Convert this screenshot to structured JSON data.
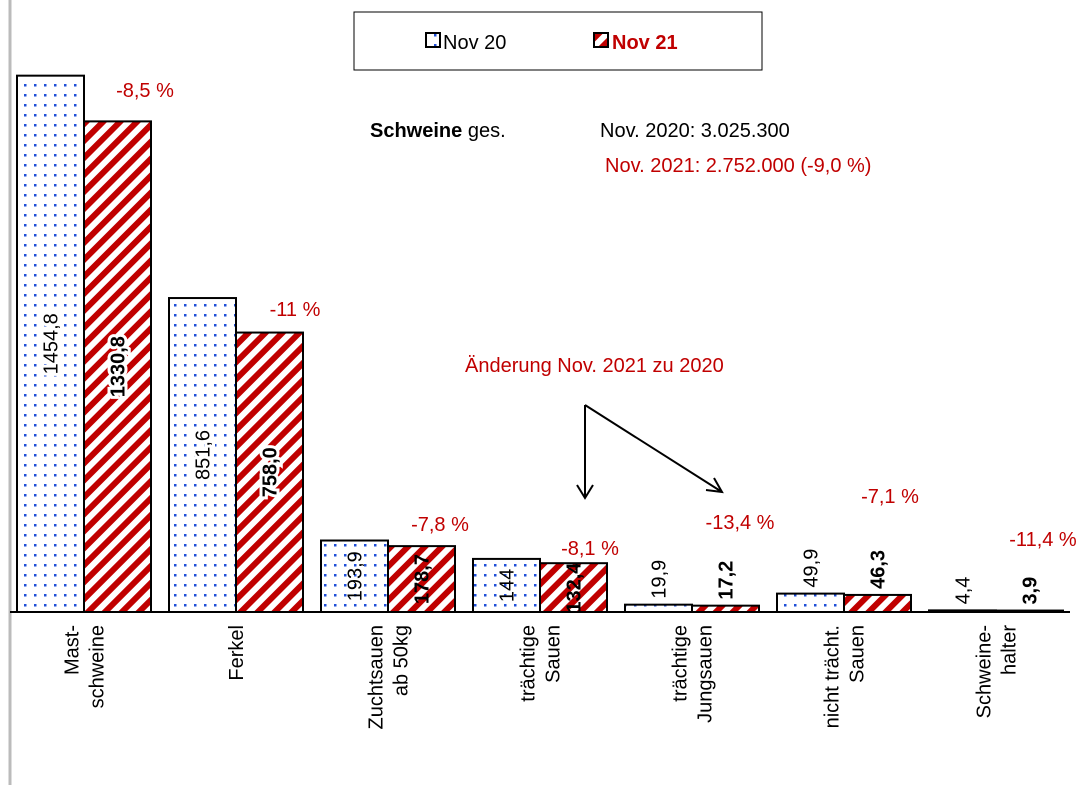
{
  "chart_data": {
    "type": "bar",
    "categories": [
      [
        "Mast-",
        "schweine"
      ],
      [
        "Ferkel"
      ],
      [
        "Zuchtsauen",
        "ab 50kg"
      ],
      [
        "trächtige",
        "Sauen"
      ],
      [
        "trächtige",
        "Jungsauen"
      ],
      [
        "nicht trächt.",
        "Sauen"
      ],
      [
        "Schweine-",
        "halter"
      ]
    ],
    "series": [
      {
        "name": "Nov 20",
        "color": "#1f4fd8",
        "values": [
          1454.8,
          851.6,
          193.9,
          144,
          19.9,
          49.9,
          4.4
        ],
        "value_labels": [
          "1454,8",
          "851,6",
          "193,9",
          "144",
          "19,9",
          "49,9",
          "4,4"
        ]
      },
      {
        "name": "Nov 21",
        "color": "#c00000",
        "values": [
          1330.8,
          758.0,
          178.7,
          132.4,
          17.2,
          46.3,
          3.9
        ],
        "value_labels": [
          "1330,8",
          "758,0",
          "178,7",
          "132,4",
          "17,2",
          "46,3",
          "3,9"
        ]
      }
    ],
    "change_labels": [
      "-8,5 %",
      "-11 %",
      "-7,8 %",
      "-8,1 %",
      "-13,4 %",
      "-7,1 %",
      "-11,4 %"
    ],
    "ylim": [
      0,
      1500
    ],
    "annotations": {
      "bold": "Schweine",
      "rest": "ges.",
      "line1": "Nov. 2020: 3.025.300",
      "line2": "Nov. 2021: 2.752.000 (-9,0 %)",
      "arrow_note": "Änderung Nov. 2021 zu 2020"
    }
  }
}
